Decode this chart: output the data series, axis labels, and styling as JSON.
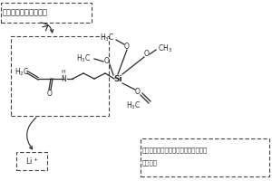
{
  "bg_color": "#ffffff",
  "top_left_label": "层叠式电解质中有机物",
  "br_label_1": "层叠式电解质中的无机物、正极材料、",
  "br_label_2": "负极材料",
  "li_label": "Li⁺",
  "font_size_label": 6.0,
  "font_size_mol": 5.5,
  "font_size_si": 6.5,
  "line_color": "#2a2a2a",
  "line_width": 0.9
}
